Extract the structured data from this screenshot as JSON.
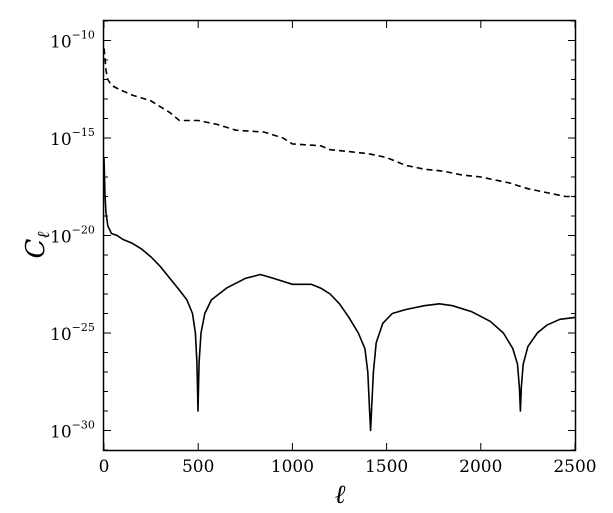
{
  "chart_data": {
    "type": "line",
    "xlabel": "ℓ",
    "ylabel": {
      "base": "C",
      "sub": "ℓ"
    },
    "xlim": [
      0,
      2500
    ],
    "ylim_log10": [
      -31,
      -9
    ],
    "y_scale": "log",
    "grid": false,
    "x_ticks": [
      {
        "value": 0,
        "label": "0"
      },
      {
        "value": 500,
        "label": "500"
      },
      {
        "value": 1000,
        "label": "1000"
      },
      {
        "value": 1500,
        "label": "1500"
      },
      {
        "value": 2000,
        "label": "2000"
      },
      {
        "value": 2500,
        "label": "2500"
      }
    ],
    "y_ticks": [
      {
        "exp": -10,
        "base": "10",
        "sup": "−10"
      },
      {
        "exp": -15,
        "base": "10",
        "sup": "−15"
      },
      {
        "exp": -20,
        "base": "10",
        "sup": "−20"
      },
      {
        "exp": -25,
        "base": "10",
        "sup": "−25"
      },
      {
        "exp": -30,
        "base": "10",
        "sup": "−30"
      }
    ],
    "series": [
      {
        "style": "dashed",
        "color": "#000000",
        "x_log10y": [
          [
            0,
            -10.4
          ],
          [
            5,
            -10.8
          ],
          [
            10,
            -11.5
          ],
          [
            20,
            -12.0
          ],
          [
            40,
            -12.3
          ],
          [
            80,
            -12.5
          ],
          [
            150,
            -12.8
          ],
          [
            250,
            -13.1
          ],
          [
            300,
            -13.4
          ],
          [
            350,
            -13.7
          ],
          [
            400,
            -14.1
          ],
          [
            500,
            -14.1
          ],
          [
            600,
            -14.3
          ],
          [
            700,
            -14.6
          ],
          [
            850,
            -14.7
          ],
          [
            950,
            -15.0
          ],
          [
            1000,
            -15.3
          ],
          [
            1150,
            -15.4
          ],
          [
            1200,
            -15.6
          ],
          [
            1300,
            -15.7
          ],
          [
            1400,
            -15.8
          ],
          [
            1500,
            -16.0
          ],
          [
            1600,
            -16.4
          ],
          [
            1700,
            -16.6
          ],
          [
            1800,
            -16.7
          ],
          [
            1900,
            -16.9
          ],
          [
            2000,
            -17.0
          ],
          [
            2150,
            -17.3
          ],
          [
            2250,
            -17.6
          ],
          [
            2350,
            -17.8
          ],
          [
            2450,
            -18.0
          ],
          [
            2500,
            -18.0
          ]
        ]
      },
      {
        "style": "solid",
        "color": "#000000",
        "x_log10y": [
          [
            0,
            -16.0
          ],
          [
            5,
            -17.8
          ],
          [
            10,
            -18.8
          ],
          [
            20,
            -19.5
          ],
          [
            40,
            -19.9
          ],
          [
            70,
            -20.0
          ],
          [
            100,
            -20.2
          ],
          [
            150,
            -20.4
          ],
          [
            200,
            -20.7
          ],
          [
            250,
            -21.1
          ],
          [
            300,
            -21.6
          ],
          [
            350,
            -22.2
          ],
          [
            400,
            -22.8
          ],
          [
            440,
            -23.3
          ],
          [
            470,
            -24.0
          ],
          [
            485,
            -25.0
          ],
          [
            493,
            -26.5
          ],
          [
            497,
            -28.0
          ],
          [
            499,
            -29.0
          ],
          [
            501,
            -28.0
          ],
          [
            505,
            -26.5
          ],
          [
            515,
            -25.0
          ],
          [
            535,
            -24.0
          ],
          [
            570,
            -23.3
          ],
          [
            650,
            -22.7
          ],
          [
            750,
            -22.2
          ],
          [
            830,
            -22.0
          ],
          [
            900,
            -22.2
          ],
          [
            1000,
            -22.5
          ],
          [
            1100,
            -22.5
          ],
          [
            1150,
            -22.7
          ],
          [
            1200,
            -23.0
          ],
          [
            1250,
            -23.5
          ],
          [
            1300,
            -24.2
          ],
          [
            1350,
            -25.0
          ],
          [
            1385,
            -25.8
          ],
          [
            1400,
            -27.0
          ],
          [
            1410,
            -29.0
          ],
          [
            1415,
            -30.0
          ],
          [
            1420,
            -29.0
          ],
          [
            1430,
            -27.0
          ],
          [
            1445,
            -25.5
          ],
          [
            1480,
            -24.5
          ],
          [
            1530,
            -24.0
          ],
          [
            1600,
            -23.8
          ],
          [
            1700,
            -23.6
          ],
          [
            1780,
            -23.5
          ],
          [
            1850,
            -23.6
          ],
          [
            1950,
            -23.9
          ],
          [
            2050,
            -24.4
          ],
          [
            2120,
            -25.0
          ],
          [
            2170,
            -25.8
          ],
          [
            2195,
            -26.6
          ],
          [
            2205,
            -27.8
          ],
          [
            2210,
            -29.0
          ],
          [
            2215,
            -27.8
          ],
          [
            2225,
            -26.6
          ],
          [
            2250,
            -25.7
          ],
          [
            2300,
            -25.0
          ],
          [
            2350,
            -24.6
          ],
          [
            2420,
            -24.3
          ],
          [
            2500,
            -24.2
          ]
        ]
      }
    ]
  }
}
